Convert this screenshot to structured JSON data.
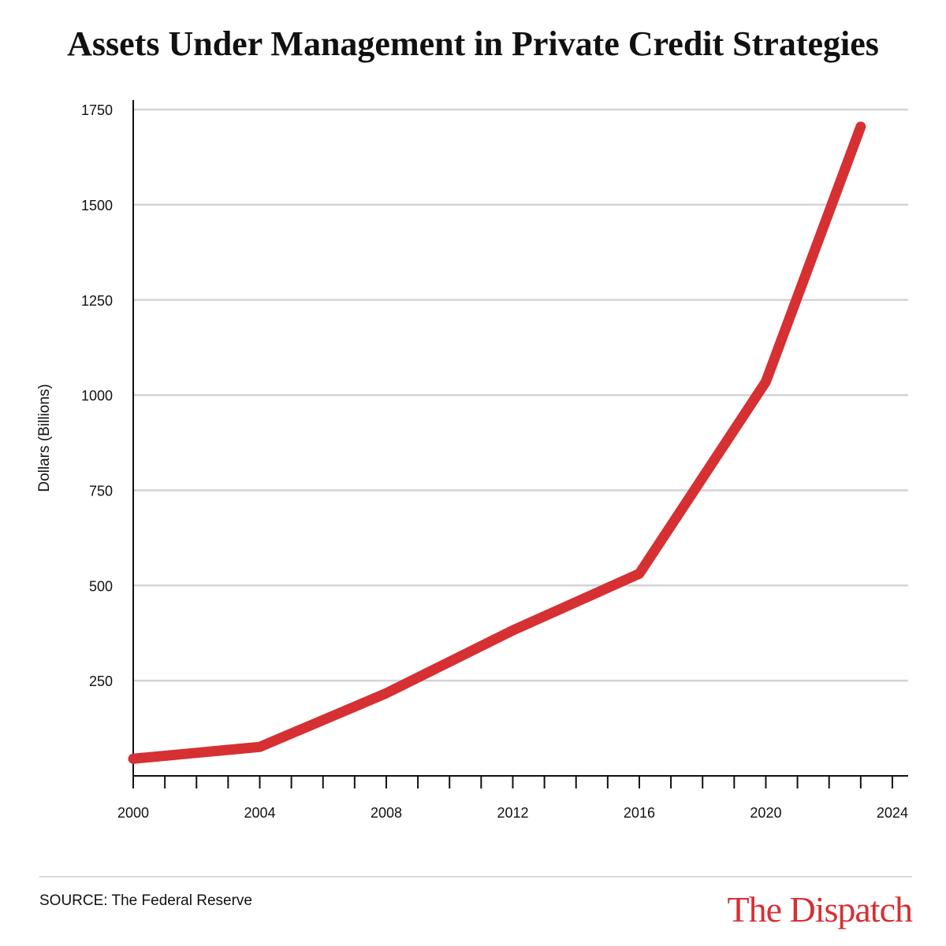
{
  "chart_data": {
    "type": "line",
    "title": "Assets Under Management in Private Credit Strategies",
    "y_label": "Dollars (Billions)",
    "source": "SOURCE: The Federal Reserve",
    "brand": "The Dispatch",
    "x": [
      2000,
      2004,
      2008,
      2012,
      2016,
      2020,
      2023
    ],
    "series": [
      {
        "name": "Assets Under Management",
        "color": "#d63033",
        "values": [
          45,
          76,
          217,
          382,
          531,
          1035,
          1705
        ]
      }
    ],
    "xlim": [
      2000,
      2024.5
    ],
    "xticks": [
      2000,
      2004,
      2008,
      2012,
      2016,
      2020,
      2024
    ],
    "xminorticks": [
      2001,
      2002,
      2003,
      2005,
      2006,
      2007,
      2009,
      2010,
      2011,
      2013,
      2014,
      2015,
      2017,
      2018,
      2019,
      2021,
      2022,
      2023
    ],
    "ylim": [
      0,
      1775
    ],
    "yticks": [
      250,
      500,
      750,
      1000,
      1250,
      1500,
      1750
    ],
    "grid": true
  }
}
